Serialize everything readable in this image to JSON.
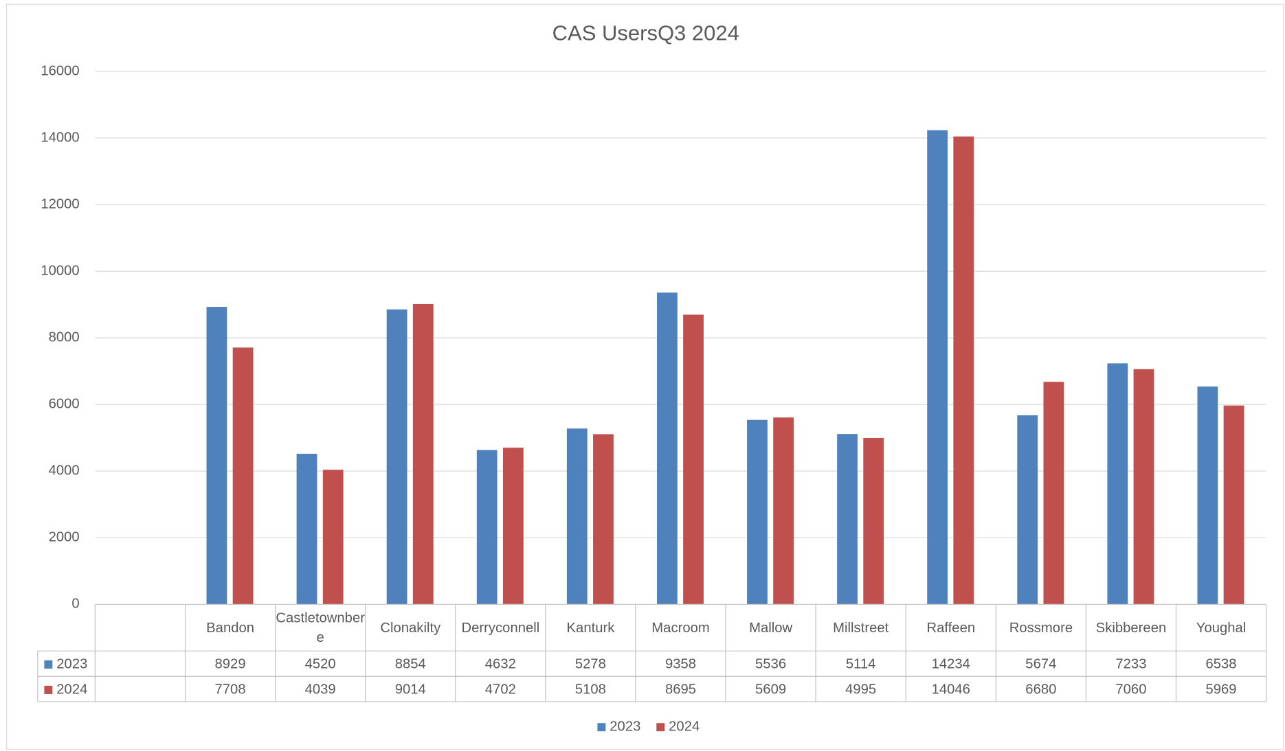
{
  "chart_data": {
    "type": "bar",
    "title": "CAS UsersQ3 2024",
    "categories": [
      "Bandon",
      "Castletownbere",
      "Clonakilty",
      "Derryconnell",
      "Kanturk",
      "Macroom",
      "Mallow",
      "Millstreet",
      "Raffeen",
      "Rossmore",
      "Skibbereen",
      "Youghal"
    ],
    "series": [
      {
        "name": "2023",
        "color": "#4f81bd",
        "values": [
          8929,
          4520,
          8854,
          4632,
          5278,
          9358,
          5536,
          5114,
          14234,
          5674,
          7233,
          6538
        ]
      },
      {
        "name": "2024",
        "color": "#c0504d",
        "values": [
          7708,
          4039,
          9014,
          4702,
          5108,
          8695,
          5609,
          4995,
          14046,
          6680,
          7060,
          5969
        ]
      }
    ],
    "ylim": [
      0,
      16000
    ],
    "yticks": [
      0,
      2000,
      4000,
      6000,
      8000,
      10000,
      12000,
      14000,
      16000
    ],
    "grid": true,
    "legend": "bottom",
    "data_table": true
  }
}
